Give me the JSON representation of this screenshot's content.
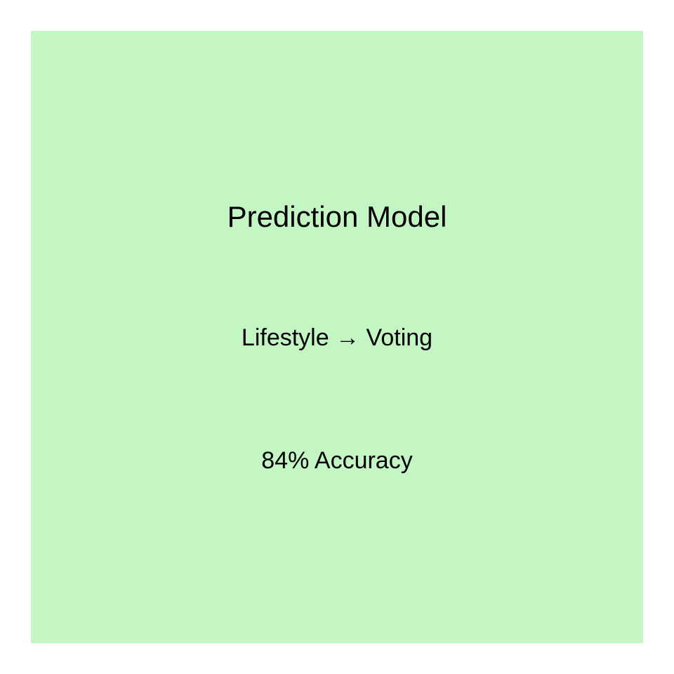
{
  "colors": {
    "background": "#ffffff",
    "panel": "#c3f6c2",
    "text": "#000000"
  },
  "card": {
    "title": "Prediction Model",
    "relation": "Lifestyle → Voting",
    "metric": "84% Accuracy"
  }
}
